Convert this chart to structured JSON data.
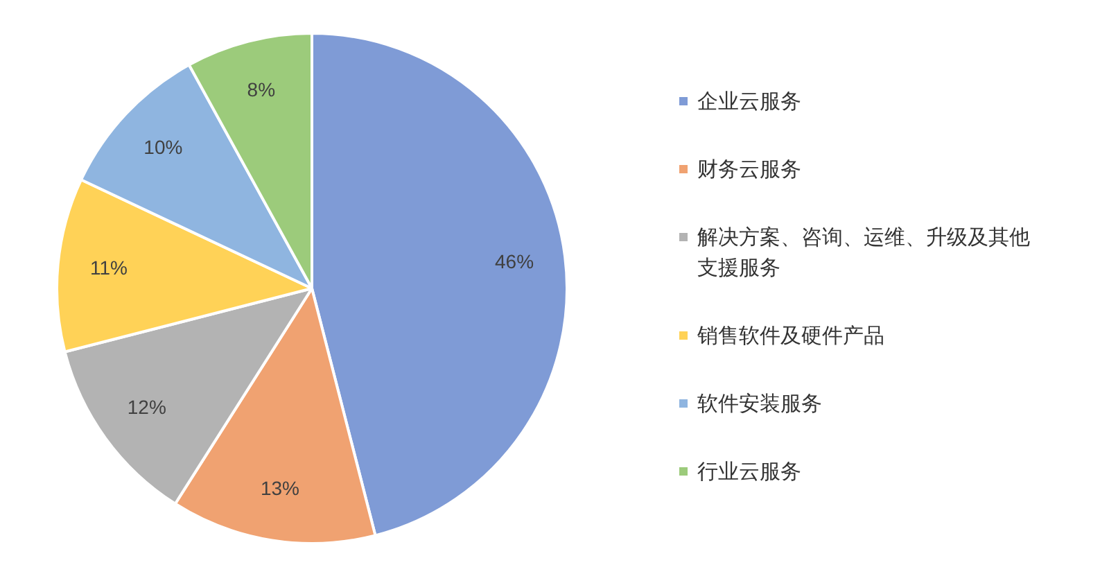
{
  "chart_data": {
    "type": "pie",
    "categories": [
      "企业云服务",
      "财务云服务",
      "解决方案、咨询、运维、升级及其他支援服务",
      "销售软件及硬件产品",
      "软件安装服务",
      "行业云服务"
    ],
    "values": [
      46,
      13,
      12,
      11,
      10,
      8
    ],
    "colors": [
      "#7f9bd6",
      "#f0a271",
      "#b3b3b3",
      "#ffd257",
      "#8fb5e0",
      "#9ccb7b"
    ],
    "value_labels": [
      "46%",
      "13%",
      "12%",
      "11%",
      "10%",
      "8%"
    ],
    "legend": "right"
  }
}
